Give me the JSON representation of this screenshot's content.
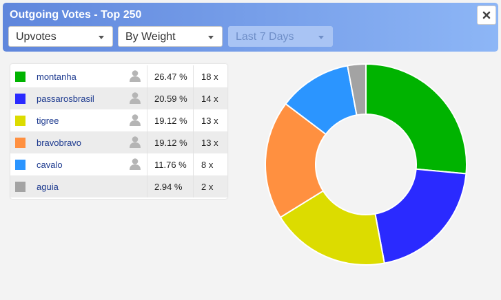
{
  "header": {
    "title": "Outgoing Votes - Top 250",
    "dropdowns": [
      "Upvotes",
      "By Weight",
      "Last 7 Days"
    ]
  },
  "chart_data": {
    "type": "pie",
    "categories": [
      "montanha",
      "passarosbrasil",
      "tigree",
      "bravobravo",
      "cavalo",
      "aguia"
    ],
    "values": [
      26.47,
      20.59,
      19.12,
      19.12,
      11.76,
      2.94
    ],
    "value_labels": [
      "26.47 %",
      "20.59 %",
      "19.12 %",
      "19.12 %",
      "11.76 %",
      "2.94 %"
    ],
    "counts": [
      "18 x",
      "14 x",
      "13 x",
      "13 x",
      "8 x",
      "2 x"
    ],
    "colors": [
      "#00b300",
      "#2a2aff",
      "#dcdc00",
      "#ff9040",
      "#2b95ff",
      "#a3a3a3"
    ]
  }
}
